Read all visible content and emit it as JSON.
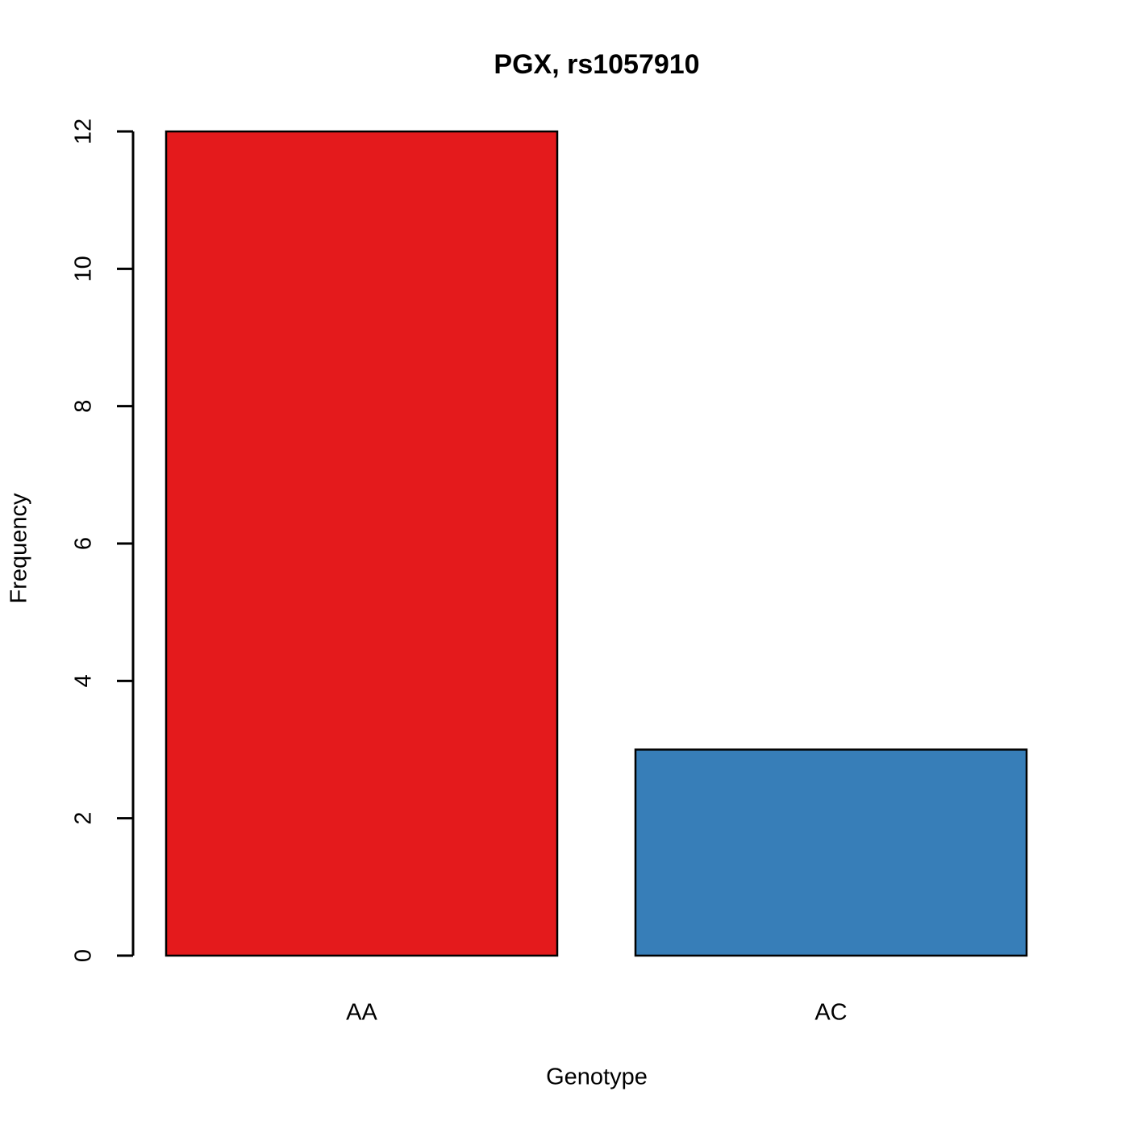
{
  "chart_data": {
    "type": "bar",
    "title": "PGX, rs1057910",
    "x_label": "Genotype",
    "y_label": "Frequency",
    "categories": [
      "AA",
      "AC"
    ],
    "values": [
      12,
      3
    ],
    "colors": [
      "#e41a1c",
      "#377eb8"
    ],
    "ylim": [
      0,
      12
    ],
    "yticks": [
      0,
      2,
      4,
      6,
      8,
      10,
      12
    ],
    "grid": false
  }
}
